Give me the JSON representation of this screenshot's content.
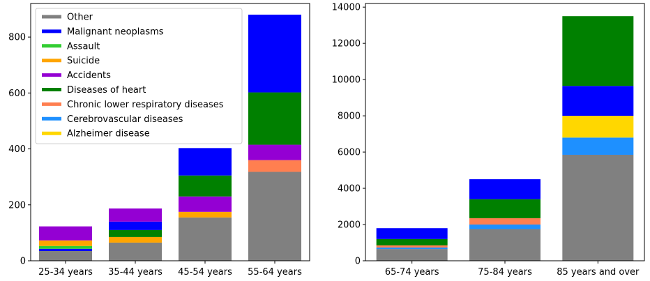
{
  "chart_data": [
    {
      "type": "bar",
      "stacked": true,
      "categories": [
        "25-34 years",
        "35-44 years",
        "45-54 years",
        "55-64 years"
      ],
      "ylim": [
        0,
        920
      ],
      "yticks": [
        0,
        200,
        400,
        600,
        800
      ],
      "legend": {
        "placement": "top-left",
        "entries": [
          {
            "name": "Other",
            "color": "#808080"
          },
          {
            "name": "Malignant neoplasms",
            "color": "#0000ff"
          },
          {
            "name": "Assault",
            "color": "#32cd32"
          },
          {
            "name": "Suicide",
            "color": "#ffa500"
          },
          {
            "name": "Accidents",
            "color": "#9400d3"
          },
          {
            "name": "Diseases of heart",
            "color": "#008000"
          },
          {
            "name": "Chronic lower respiratory diseases",
            "color": "#ff7f50"
          },
          {
            "name": "Cerebrovascular diseases",
            "color": "#1e90ff"
          },
          {
            "name": "Alzheimer disease",
            "color": "#ffd700"
          }
        ]
      },
      "series": [
        {
          "name": "Other",
          "color": "#808080",
          "values": [
            35,
            65,
            155,
            318
          ]
        },
        {
          "name": "Cerebrovascular diseases",
          "color": "#1e90ff",
          "values": [
            0,
            0,
            0,
            0
          ]
        },
        {
          "name": "Chronic lower respiratory diseases",
          "color": "#ff7f50",
          "values": [
            0,
            0,
            0,
            42
          ]
        },
        {
          "name": "Malignant neoplasms",
          "color": "#0000ff",
          "values": [
            8,
            0,
            0,
            0
          ]
        },
        {
          "name": "Assault",
          "color": "#32cd32",
          "values": [
            10,
            0,
            0,
            0
          ]
        },
        {
          "name": "Suicide",
          "color": "#ffa500",
          "values": [
            20,
            20,
            20,
            0
          ]
        },
        {
          "name": "Diseases of heart",
          "color": "#008000",
          "values": [
            0,
            25,
            0,
            0
          ]
        },
        {
          "name": "Malignant neoplasms",
          "color": "#0000ff",
          "values": [
            0,
            30,
            0,
            0
          ]
        },
        {
          "name": "Accidents",
          "color": "#9400d3",
          "values": [
            50,
            47,
            55,
            55
          ]
        },
        {
          "name": "Diseases of heart",
          "color": "#008000",
          "values": [
            0,
            0,
            75,
            187
          ]
        },
        {
          "name": "Malignant neoplasms",
          "color": "#0000ff",
          "values": [
            0,
            0,
            98,
            278
          ]
        }
      ]
    },
    {
      "type": "bar",
      "stacked": true,
      "categories": [
        "65-74 years",
        "75-84 years",
        "85 years and over"
      ],
      "ylim": [
        0,
        14200
      ],
      "yticks": [
        0,
        2000,
        4000,
        6000,
        8000,
        10000,
        12000,
        14000
      ],
      "series": [
        {
          "name": "Other",
          "color": "#808080",
          "values": [
            650,
            1750,
            5850
          ]
        },
        {
          "name": "Cerebrovascular diseases",
          "color": "#1e90ff",
          "values": [
            80,
            250,
            950
          ]
        },
        {
          "name": "Chronic lower respiratory diseases",
          "color": "#ff7f50",
          "values": [
            120,
            350,
            0
          ]
        },
        {
          "name": "Alzheimer disease",
          "color": "#ffd700",
          "values": [
            0,
            0,
            1200
          ]
        },
        {
          "name": "Diseases of heart",
          "color": "#008000",
          "values": [
            350,
            1050,
            0
          ]
        },
        {
          "name": "Malignant neoplasms",
          "color": "#0000ff",
          "values": [
            600,
            1100,
            1650
          ]
        },
        {
          "name": "Diseases of heart",
          "color": "#008000",
          "values": [
            0,
            0,
            3850
          ]
        }
      ]
    }
  ]
}
